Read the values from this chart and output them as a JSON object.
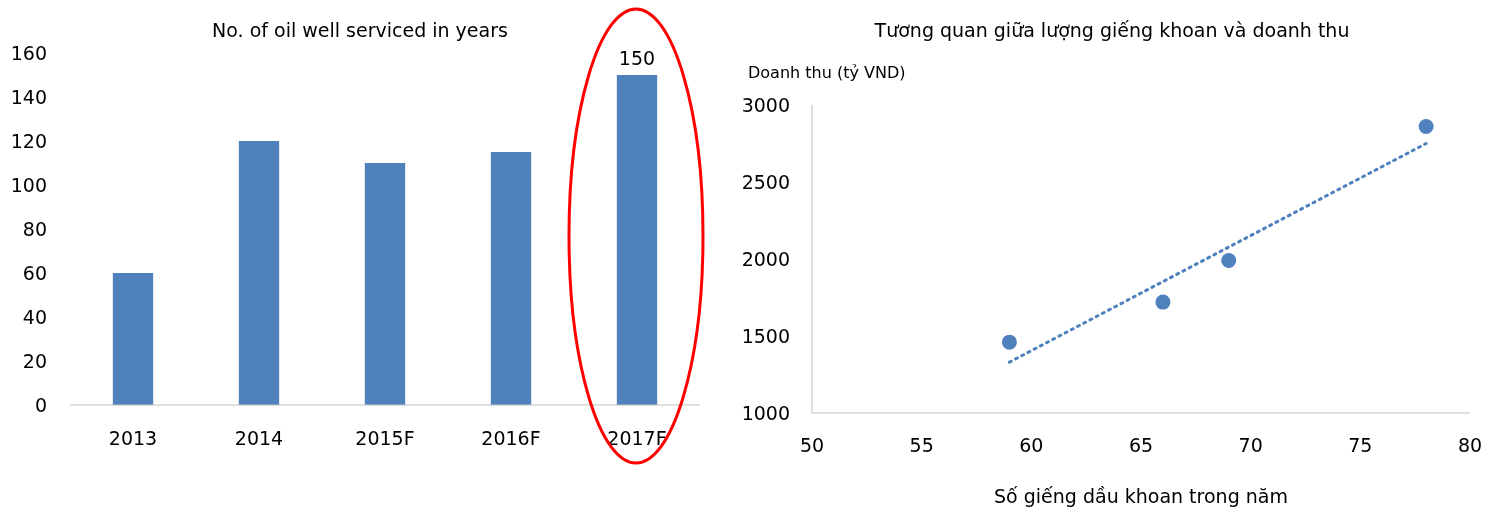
{
  "chart_data": [
    {
      "type": "bar",
      "title": "No. of oil well serviced in years",
      "categories": [
        "2013",
        "2014",
        "2015F",
        "2016F",
        "2017F"
      ],
      "values": [
        60,
        120,
        110,
        115,
        150
      ],
      "value_labels": [
        null,
        null,
        null,
        null,
        "150"
      ],
      "color": "#4f81bd",
      "ylim": [
        0,
        160
      ],
      "yticks": [
        0,
        20,
        40,
        60,
        80,
        100,
        120,
        140,
        160
      ],
      "grid": false
    },
    {
      "type": "scatter",
      "title": "Tương quan giữa lượng giếng khoan và doanh thu",
      "ylabel": "Doanh thu (tỷ VND)",
      "xlabel": "Số giếng dầu khoan trong năm",
      "series": [
        {
          "type": "scatter",
          "color": "#4f81bd",
          "x": [
            59,
            66,
            69,
            78
          ],
          "values": [
            1460,
            1720,
            1990,
            2860
          ],
          "marker": "circle"
        },
        {
          "type": "line",
          "color": "#4f81bd",
          "x": [
            59,
            78
          ],
          "values": [
            1330,
            2750
          ],
          "line_style": "dotted"
        }
      ],
      "xlim": [
        50,
        80
      ],
      "xticks": [
        50,
        55,
        60,
        65,
        70,
        75,
        80
      ],
      "ylim": [
        1000,
        3000
      ],
      "yticks": [
        1000,
        1500,
        2000,
        2500,
        3000
      ],
      "grid": false
    }
  ]
}
